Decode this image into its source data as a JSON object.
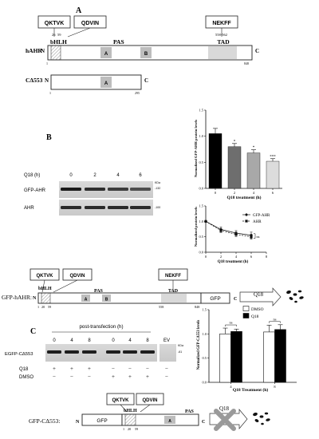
{
  "panel_labels": {
    "a": "A",
    "b": "B",
    "c": "C"
  },
  "panel_a": {
    "motifs": [
      "QKTVK",
      "QDVIN",
      "NEKFF"
    ],
    "motif_positions": [
      "26",
      "59",
      "558-562"
    ],
    "domains": {
      "bhlh": "bHLH",
      "pas": "PAS",
      "pas_a": "A",
      "pas_b": "B",
      "tad": "TAD"
    },
    "hahr": {
      "name": "hAHR",
      "n": "N",
      "c": "C",
      "start": "1",
      "end": "848"
    },
    "cdelta": {
      "name": "CΔ553",
      "n": "N",
      "c": "C",
      "start": "1",
      "end": "295"
    }
  },
  "panel_b": {
    "blot": {
      "time_header": "Q18 (h)",
      "times": [
        "0",
        "2",
        "4",
        "6"
      ],
      "rows": [
        "GFP-AHR",
        "AHR"
      ],
      "kda": "KDa",
      "mw": [
        "-132",
        "-100"
      ]
    },
    "bar_chart_title": "",
    "line_chart_title": ""
  },
  "construct_b": {
    "label": "GFP-hAHR:",
    "motifs": [
      "QKTVK",
      "QDVIN",
      "NEKFF"
    ],
    "bhlh": "bHLH",
    "pas": "PAS",
    "pas_a": "A",
    "pas_b": "B",
    "tad": "TAD",
    "n": "N",
    "c": "C",
    "positions": [
      "1",
      "20",
      "59"
    ],
    "pos_558": "558",
    "pos_848": "848",
    "gfp": "GFP",
    "drug": "Q18"
  },
  "panel_c": {
    "blot": {
      "header": "post-transfection (h)",
      "times": [
        "0",
        "4",
        "8",
        "0",
        "4",
        "8"
      ],
      "ev": "EV",
      "row_label": "EGFP-CΔ553",
      "kda": "KDa",
      "mw": "-61",
      "treat_labels": [
        "Q18",
        "DMSO"
      ],
      "q18_signs": [
        "+",
        "+",
        "+",
        "−",
        "−",
        "−",
        "−"
      ],
      "dmso_signs": [
        "−",
        "−",
        "−",
        "+",
        "+",
        "+",
        "−"
      ]
    }
  },
  "construct_c": {
    "label": "GFP-CΔ553:",
    "motifs": [
      "QKTVK",
      "QDVIN"
    ],
    "bhlh": "bHLH",
    "pas": "PAS",
    "pas_a": "A",
    "n": "N",
    "c": "C",
    "positions": [
      "1",
      "20",
      "59"
    ],
    "gfp": "GFP",
    "drug": "Q18"
  },
  "chart_data": [
    {
      "type": "bar",
      "categories": [
        "0",
        "2",
        "4",
        "6"
      ],
      "values": [
        1.05,
        0.8,
        0.68,
        0.52
      ],
      "errors": [
        0.1,
        0.06,
        0.06,
        0.05
      ],
      "significance": [
        "",
        "*",
        "*",
        "***"
      ],
      "colors": [
        "#000000",
        "#6e6e6e",
        "#a8a8a8",
        "#dcdcdc"
      ],
      "title": "",
      "xlabel": "Q18 treatment (h)",
      "ylabel": "Normalized GFP-AHR protein levels",
      "ylim": [
        0,
        1.5
      ],
      "yticks": [
        "0.0",
        "0.5",
        "1.0",
        "1.5"
      ]
    },
    {
      "type": "line",
      "x": [
        0,
        2,
        4,
        6
      ],
      "series": [
        {
          "name": "GFP-AHR",
          "values": [
            1.0,
            0.74,
            0.62,
            0.55
          ],
          "errors": [
            0.02,
            0.08,
            0.08,
            0.1
          ],
          "marker": "diamond"
        },
        {
          "name": "AHR",
          "values": [
            1.0,
            0.7,
            0.58,
            0.5
          ],
          "errors": [
            0.02,
            0.06,
            0.07,
            0.08
          ],
          "marker": "square"
        }
      ],
      "annotation": "ns",
      "title": "",
      "xlabel": "Q18 treatment (h)",
      "ylabel": "Normalized protein levels",
      "xlim": [
        0,
        8
      ],
      "ylim": [
        0,
        1.5
      ],
      "xticks": [
        "0",
        "2",
        "4",
        "6",
        "8"
      ],
      "yticks": [
        "0.0",
        "0.5",
        "1.0",
        "1.5"
      ],
      "legend_position": "top-right"
    },
    {
      "type": "bar",
      "categories": [
        "4",
        "8"
      ],
      "series": [
        {
          "name": "DMSO",
          "values": [
            1.0,
            1.04
          ],
          "errors": [
            0.12,
            0.14
          ],
          "color": "#ffffff"
        },
        {
          "name": "Q18",
          "values": [
            1.05,
            1.09
          ],
          "errors": [
            0.05,
            0.1
          ],
          "color": "#000000"
        }
      ],
      "significance": [
        "ns",
        "ns"
      ],
      "title": "",
      "xlabel": "Q18 Treatment (h)",
      "ylabel": "Normalized GFP-CΔ553 levels",
      "ylim": [
        0,
        1.5
      ],
      "yticks": [
        "0.0",
        "0.5",
        "1.0",
        "1.5"
      ],
      "legend_position": "top-left"
    }
  ]
}
